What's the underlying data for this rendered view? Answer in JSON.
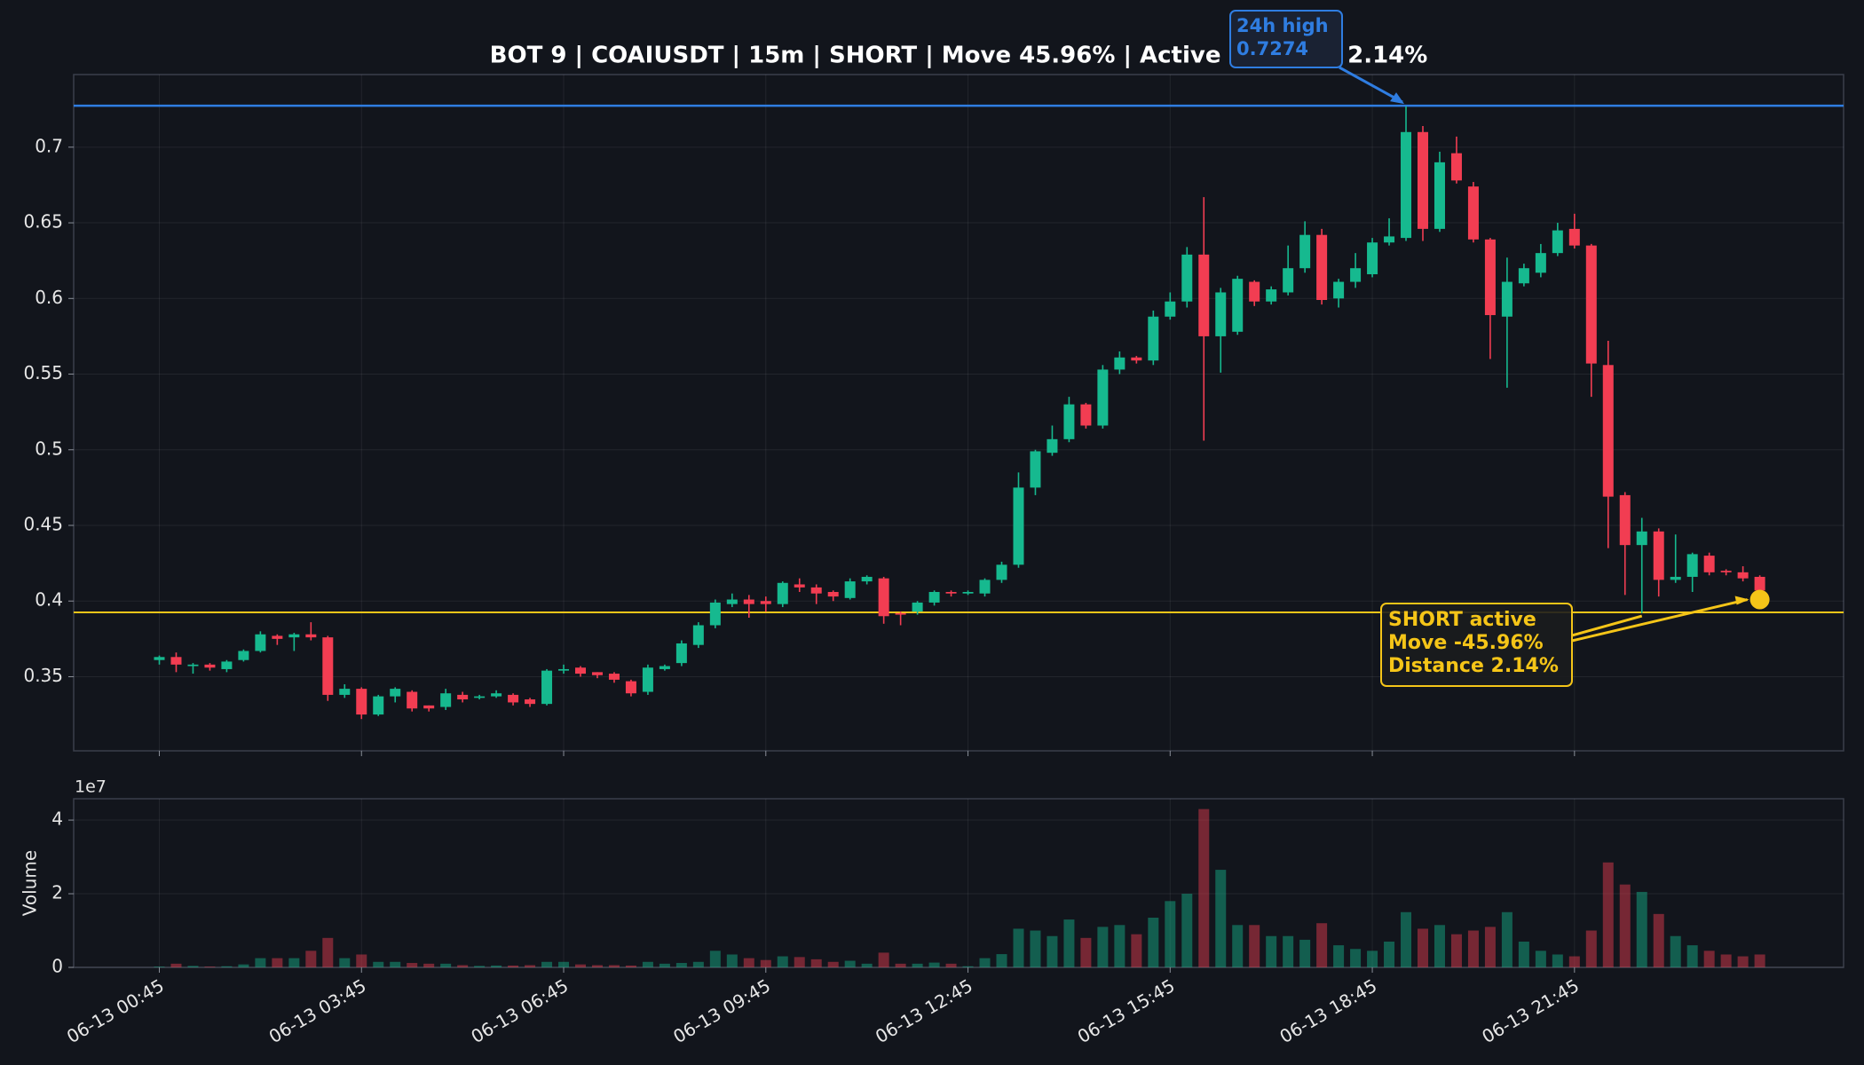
{
  "chart_data": {
    "type": "candlestick",
    "title": "BOT 9 | COAIUSDT | 15m | SHORT | Move 45.96% | Active distance 2.14%",
    "categories": [
      "06-13 00:45",
      null,
      null,
      null,
      null,
      null,
      null,
      null,
      null,
      null,
      null,
      null,
      "06-13 03:45",
      null,
      null,
      null,
      null,
      null,
      null,
      null,
      null,
      null,
      null,
      null,
      "06-13 06:45",
      null,
      null,
      null,
      null,
      null,
      null,
      null,
      null,
      null,
      null,
      null,
      "06-13 09:45",
      null,
      null,
      null,
      null,
      null,
      null,
      null,
      null,
      null,
      null,
      null,
      "06-13 12:45",
      null,
      null,
      null,
      null,
      null,
      null,
      null,
      null,
      null,
      null,
      null,
      "06-13 15:45",
      null,
      null,
      null,
      null,
      null,
      null,
      null,
      null,
      null,
      null,
      null,
      "06-13 18:45",
      null,
      null,
      null,
      null,
      null,
      null,
      null,
      null,
      null,
      null,
      null,
      "06-13 21:45",
      null,
      null,
      null,
      null,
      null,
      null,
      null,
      null,
      null,
      null,
      null
    ],
    "open": [
      0.361,
      0.363,
      0.357,
      0.358,
      0.355,
      0.361,
      0.367,
      0.377,
      0.376,
      0.378,
      0.376,
      0.338,
      0.342,
      0.325,
      0.337,
      0.34,
      0.331,
      0.33,
      0.338,
      0.336,
      0.337,
      0.338,
      0.335,
      0.332,
      0.354,
      0.356,
      0.353,
      0.352,
      0.347,
      0.34,
      0.355,
      0.359,
      0.371,
      0.384,
      0.398,
      0.401,
      0.4,
      0.398,
      0.411,
      0.409,
      0.406,
      0.402,
      0.413,
      0.415,
      0.392,
      0.393,
      0.399,
      0.406,
      0.405,
      0.405,
      0.414,
      0.424,
      0.475,
      0.498,
      0.507,
      0.53,
      0.516,
      0.553,
      0.561,
      0.559,
      0.588,
      0.598,
      0.629,
      0.575,
      0.578,
      0.611,
      0.598,
      0.604,
      0.62,
      0.642,
      0.6,
      0.611,
      0.616,
      0.637,
      0.64,
      0.71,
      0.646,
      0.696,
      0.674,
      0.639,
      0.588,
      0.61,
      0.617,
      0.63,
      0.646,
      0.635,
      0.556,
      0.47,
      0.437,
      0.446,
      0.414,
      0.416,
      0.43,
      0.42,
      0.419,
      0.416
    ],
    "high": [
      0.364,
      0.366,
      0.359,
      0.359,
      0.361,
      0.368,
      0.38,
      0.378,
      0.379,
      0.386,
      0.377,
      0.345,
      0.343,
      0.338,
      0.343,
      0.341,
      0.331,
      0.342,
      0.34,
      0.338,
      0.341,
      0.339,
      0.336,
      0.355,
      0.358,
      0.357,
      0.353,
      0.353,
      0.348,
      0.358,
      0.358,
      0.374,
      0.386,
      0.401,
      0.405,
      0.404,
      0.403,
      0.413,
      0.415,
      0.411,
      0.407,
      0.415,
      0.417,
      0.416,
      0.393,
      0.4,
      0.407,
      0.407,
      0.407,
      0.415,
      0.426,
      0.485,
      0.5,
      0.516,
      0.535,
      0.531,
      0.556,
      0.565,
      0.562,
      0.592,
      0.604,
      0.634,
      0.667,
      0.607,
      0.615,
      0.612,
      0.608,
      0.635,
      0.651,
      0.646,
      0.613,
      0.63,
      0.64,
      0.653,
      0.727,
      0.714,
      0.697,
      0.707,
      0.677,
      0.64,
      0.627,
      0.623,
      0.636,
      0.65,
      0.656,
      0.636,
      0.572,
      0.472,
      0.455,
      0.448,
      0.444,
      0.432,
      0.432,
      0.421,
      0.423,
      0.417
    ],
    "low": [
      0.358,
      0.353,
      0.352,
      0.354,
      0.353,
      0.36,
      0.366,
      0.371,
      0.367,
      0.374,
      0.334,
      0.336,
      0.322,
      0.324,
      0.333,
      0.327,
      0.327,
      0.328,
      0.333,
      0.335,
      0.336,
      0.331,
      0.33,
      0.331,
      0.352,
      0.35,
      0.349,
      0.346,
      0.337,
      0.338,
      0.354,
      0.357,
      0.369,
      0.382,
      0.396,
      0.389,
      0.393,
      0.396,
      0.406,
      0.398,
      0.4,
      0.401,
      0.411,
      0.385,
      0.384,
      0.391,
      0.397,
      0.403,
      0.404,
      0.403,
      0.412,
      0.422,
      0.47,
      0.496,
      0.505,
      0.514,
      0.514,
      0.55,
      0.557,
      0.556,
      0.586,
      0.594,
      0.506,
      0.551,
      0.576,
      0.595,
      0.596,
      0.602,
      0.617,
      0.596,
      0.594,
      0.607,
      0.614,
      0.635,
      0.638,
      0.638,
      0.644,
      0.676,
      0.637,
      0.56,
      0.541,
      0.608,
      0.614,
      0.628,
      0.633,
      0.535,
      0.435,
      0.404,
      0.392,
      0.403,
      0.412,
      0.406,
      0.417,
      0.417,
      0.413,
      0.404
    ],
    "close": [
      0.363,
      0.358,
      0.358,
      0.356,
      0.36,
      0.367,
      0.378,
      0.375,
      0.378,
      0.376,
      0.338,
      0.342,
      0.325,
      0.337,
      0.342,
      0.329,
      0.329,
      0.339,
      0.335,
      0.337,
      0.339,
      0.333,
      0.332,
      0.354,
      0.355,
      0.352,
      0.351,
      0.348,
      0.339,
      0.356,
      0.357,
      0.372,
      0.384,
      0.399,
      0.401,
      0.398,
      0.398,
      0.412,
      0.409,
      0.405,
      0.403,
      0.413,
      0.416,
      0.39,
      0.391,
      0.399,
      0.406,
      0.405,
      0.406,
      0.414,
      0.424,
      0.475,
      0.499,
      0.507,
      0.53,
      0.516,
      0.553,
      0.561,
      0.559,
      0.588,
      0.598,
      0.629,
      0.575,
      0.604,
      0.613,
      0.598,
      0.606,
      0.62,
      0.642,
      0.599,
      0.611,
      0.62,
      0.637,
      0.641,
      0.71,
      0.646,
      0.69,
      0.678,
      0.639,
      0.589,
      0.611,
      0.62,
      0.63,
      0.645,
      0.635,
      0.557,
      0.469,
      0.437,
      0.446,
      0.414,
      0.416,
      0.431,
      0.419,
      0.419,
      0.415,
      0.407
    ],
    "volume": [
      200000,
      1000000,
      400000,
      200000,
      300000,
      800000,
      2500000,
      2500000,
      2500000,
      4500000,
      8000000,
      2500000,
      3500000,
      1500000,
      1500000,
      1200000,
      1000000,
      1000000,
      600000,
      400000,
      500000,
      500000,
      600000,
      1500000,
      1500000,
      800000,
      600000,
      600000,
      500000,
      1500000,
      1000000,
      1200000,
      1500000,
      4500000,
      3500000,
      2500000,
      2000000,
      3000000,
      2800000,
      2200000,
      1500000,
      1800000,
      1000000,
      4000000,
      1000000,
      1000000,
      1300000,
      1000000,
      300000,
      2500000,
      3600000,
      10500000,
      10000000,
      8500000,
      13000000,
      8000000,
      11000000,
      11500000,
      9000000,
      13500000,
      18000000,
      20000000,
      43000000,
      26500000,
      11500000,
      11500000,
      8500000,
      8500000,
      7500000,
      12000000,
      6000000,
      5000000,
      4500000,
      7000000,
      15000000,
      10500000,
      11500000,
      9000000,
      10000000,
      11000000,
      15000000,
      7000000,
      4500000,
      3500000,
      3000000,
      10000000,
      28500000,
      22500000,
      20500000,
      14500000,
      8500000,
      6000000,
      4500000,
      3500000,
      3000000,
      3500000
    ],
    "up_color": "#16b98f",
    "down_color": "#f23d52",
    "ylim": [
      0.301,
      0.748
    ],
    "yticks": [
      0.35,
      0.4,
      0.45,
      0.5,
      0.55,
      0.6,
      0.65,
      0.7
    ],
    "volume_ylim": [
      0,
      45800000
    ],
    "volume_yticks": [
      0,
      {
        "value": 20000000,
        "label": "2"
      },
      {
        "value": 40000000,
        "label": "4"
      }
    ],
    "volume_offset_label": "1e7",
    "volume_label": "Volume",
    "grid": true,
    "high_label": "24h high",
    "high_price": 0.7274,
    "high_color": "#2f7de1",
    "entry_price": 0.3925,
    "current_price": 0.401,
    "status_color": "#f5c518",
    "status_lines": [
      "SHORT active",
      "Move -45.96%",
      "Distance 2.14%"
    ]
  }
}
